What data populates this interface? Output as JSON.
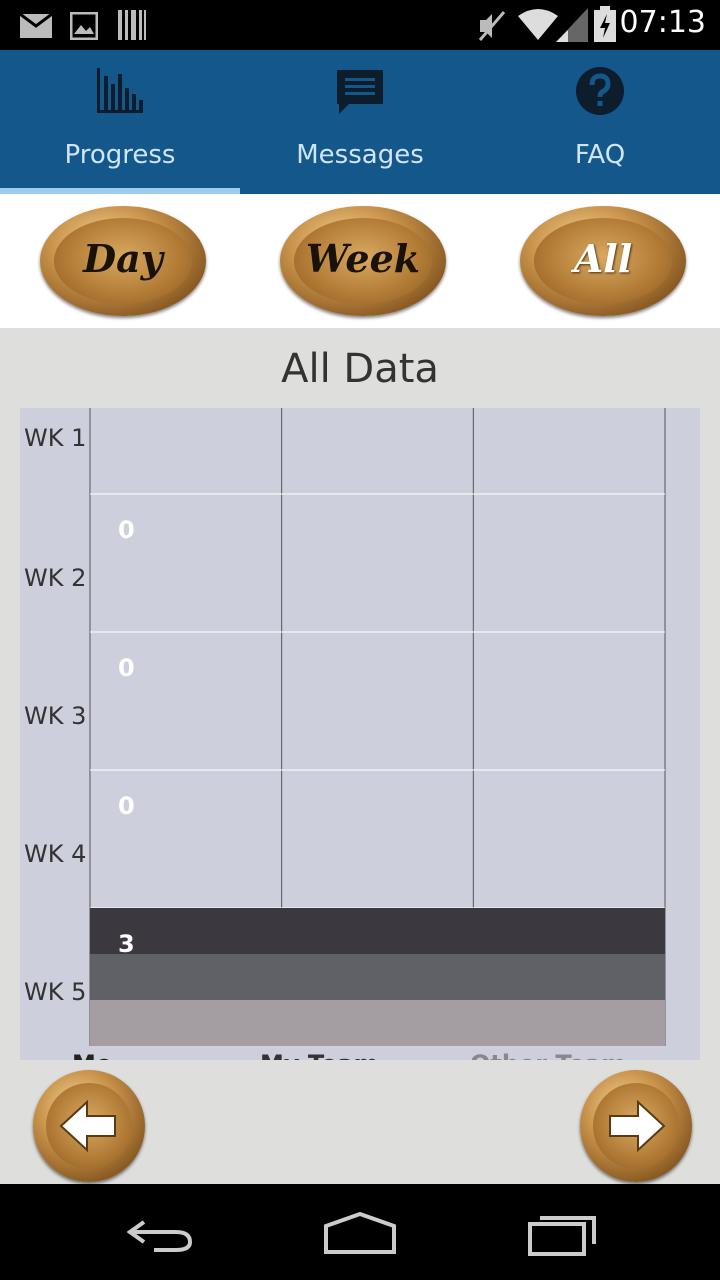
{
  "status_bar": {
    "time": "07:13",
    "icons": [
      "mail-icon",
      "image-icon",
      "barcode-icon",
      "mute-icon",
      "wifi-icon",
      "signal-icon",
      "battery-icon"
    ]
  },
  "tabs": [
    {
      "label": "Progress",
      "icon": "bar-chart-icon",
      "active": true
    },
    {
      "label": "Messages",
      "icon": "message-icon",
      "active": false
    },
    {
      "label": "FAQ",
      "icon": "help-icon",
      "active": false
    }
  ],
  "range_buttons": {
    "day": "Day",
    "week": "Week",
    "all": "All"
  },
  "chart_title": "All Data",
  "chart_data": {
    "type": "bar",
    "orientation": "horizontal",
    "categories": [
      "WK 1",
      "WK 2",
      "WK 3",
      "WK 4",
      "WK 5"
    ],
    "series": [
      {
        "name": "Me",
        "values": [
          null,
          0,
          0,
          0,
          3
        ],
        "color": "#3c383f"
      },
      {
        "name": "My Team",
        "values": [
          null,
          null,
          null,
          null,
          null
        ],
        "color": "#5f6166"
      },
      {
        "name": "Other Team",
        "values": [
          null,
          null,
          null,
          null,
          null
        ],
        "color": "#a49ea2"
      }
    ],
    "value_labels": [
      "",
      "0",
      "0",
      "0",
      "3"
    ],
    "xlim": [
      0,
      3
    ],
    "grid": true
  },
  "colors": {
    "header": "#13578b",
    "tab_indicator": "#9ccbed",
    "chart_bg": "#cdd0dc",
    "bar_dark": "#3c383f",
    "bar_mid": "#5f6166",
    "bar_light": "#a49ea2"
  },
  "nav": {
    "back": "back-arrow-icon",
    "forward": "forward-arrow-icon"
  },
  "system_nav": [
    "back-icon",
    "home-icon",
    "recents-icon"
  ]
}
